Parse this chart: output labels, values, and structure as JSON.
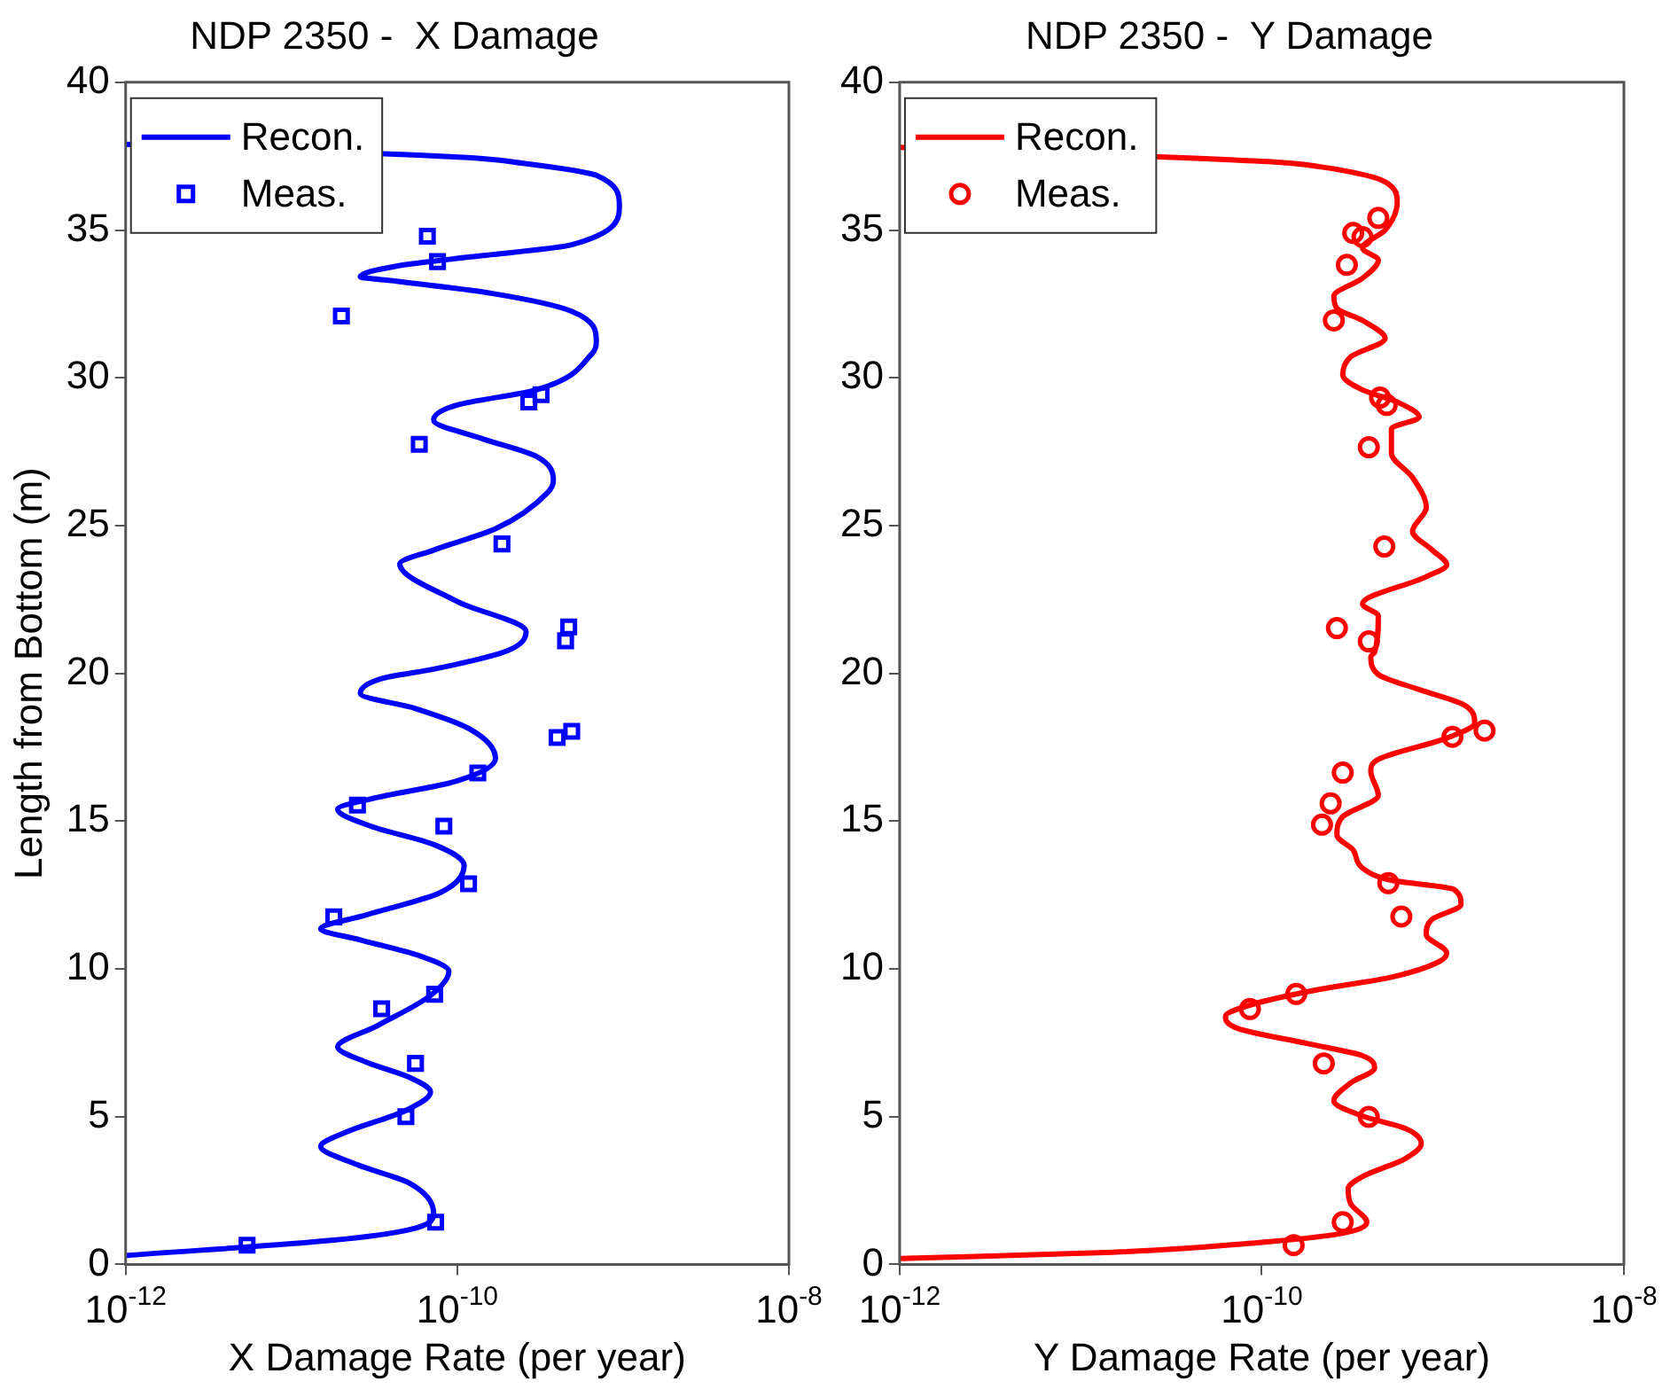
{
  "chart_data": [
    {
      "type": "line",
      "title": "NDP 2350 -  X Damage",
      "xlabel": "X Damage Rate (per year)",
      "ylabel": "Length from Bottom (m)",
      "log": "x",
      "grid": false,
      "legend": "top left",
      "xlim": [
        1e-12,
        1e-08
      ],
      "xticks": [
        {
          "value": 1e-12,
          "label": "10$^{-12}$"
        },
        {
          "value": 1e-10,
          "label": "10$^{-10}$"
        },
        {
          "value": 1e-08,
          "label": "10$^{-8}$"
        }
      ],
      "ylim": [
        0,
        40
      ],
      "yticks": [
        0,
        5,
        10,
        15,
        20,
        25,
        30,
        35,
        40
      ],
      "series": [
        {
          "name": "Recon.",
          "type": "line",
          "color": "#0000ff",
          "line_style": "solid",
          "marker": "none",
          "x": [
            1e-12,
            1.8e-11,
            5.1e-11,
            7.2e-11,
            5.1e-11,
            2.5e-11,
            1.5e-11,
            2.1e-11,
            4.9e-11,
            6.9e-11,
            5.1e-11,
            2.8e-11,
            1.9e-11,
            3.3e-11,
            6.9e-11,
            8.9e-11,
            6e-11,
            2.6e-11,
            1.5e-11,
            2.8e-11,
            7.9e-11,
            1.1e-10,
            7.2e-11,
            3e-11,
            1.9e-11,
            3e-11,
            1e-10,
            1.7e-10,
            1.2e-10,
            5.6e-11,
            2.6e-11,
            3.6e-11,
            7.2e-11,
            2e-10,
            2.6e-10,
            1e-10,
            4.5e-11,
            7.2e-11,
            1.7e-10,
            3.5e-10,
            3.8e-10,
            3e-10,
            1.4e-10,
            7.2e-11,
            1e-10,
            3e-10,
            6.5e-10,
            6.9e-10,
            4.9e-10,
            1.6e-10,
            4.3e-11,
            2.6e-11,
            4.3e-11,
            1.2e-10,
            4.9e-10,
            9.5e-10,
            6.9e-10,
            2.5e-10,
            1.1e-10,
            1e-12
          ],
          "values": [
            0.3,
            0.82,
            1.17,
            1.74,
            2.76,
            3.37,
            3.99,
            4.46,
            5.21,
            5.83,
            6.34,
            6.85,
            7.36,
            8.08,
            9.1,
            9.92,
            10.43,
            10.98,
            11.35,
            11.82,
            12.58,
            13.5,
            14.21,
            14.83,
            15.4,
            15.75,
            16.36,
            17.12,
            18.1,
            18.81,
            19.32,
            19.84,
            20.14,
            20.76,
            21.41,
            22.43,
            23.7,
            24.17,
            24.89,
            26.11,
            26.52,
            27.34,
            27.95,
            28.57,
            29.08,
            29.59,
            30.82,
            31.23,
            32.25,
            32.86,
            33.27,
            33.42,
            33.78,
            34.09,
            34.5,
            35.83,
            36.85,
            37.26,
            37.46,
            37.9
          ]
        },
        {
          "name": "Meas.",
          "type": "scatter",
          "color": "#0000ff",
          "marker": "square",
          "x": [
            5.4e-12,
            7.4e-11,
            4.9e-11,
            5.6e-11,
            3.5e-11,
            7.3e-11,
            1.8e-11,
            1.17e-10,
            8.3e-11,
            2.5e-11,
            1.33e-10,
            4e-10,
            4.9e-10,
            4.5e-10,
            4.7e-10,
            1.86e-10,
            5.9e-11,
            2.7e-10,
            3.2e-10,
            2e-11,
            7.6e-11,
            6.6e-11
          ],
          "values": [
            0.65,
            1.43,
            5.0,
            6.8,
            8.65,
            9.14,
            11.76,
            12.88,
            14.83,
            15.54,
            16.63,
            17.83,
            18.04,
            21.1,
            21.57,
            24.38,
            27.75,
            29.18,
            29.43,
            32.09,
            33.93,
            34.79
          ]
        }
      ]
    },
    {
      "type": "line",
      "title": "NDP 2350 -  Y Damage",
      "xlabel": "Y Damage Rate (per year)",
      "log": "x",
      "grid": false,
      "legend": "top left",
      "xlim": [
        1e-12,
        1e-08
      ],
      "xticks": [
        {
          "value": 1e-12,
          "label": "10$^{-12}$"
        },
        {
          "value": 1e-10,
          "label": "10$^{-10}$"
        },
        {
          "value": 1e-08,
          "label": "10$^{-8}$"
        }
      ],
      "ylim": [
        0,
        40
      ],
      "yticks": [
        0,
        5,
        10,
        15,
        20,
        25,
        30,
        35,
        40
      ],
      "series": [
        {
          "name": "Recon.",
          "type": "line",
          "color": "#ff0000",
          "line_style": "solid",
          "marker": "none",
          "x": [
            1e-12,
            1.5e-11,
            8.9e-11,
            2.6e-10,
            3.8e-10,
            3.1e-10,
            3e-10,
            3.6e-10,
            6.2e-10,
            7.6e-10,
            6.2e-10,
            3.6e-10,
            2.5e-10,
            3.1e-10,
            4.2e-10,
            3.6e-10,
            1.8e-10,
            7.4e-11,
            6.3e-11,
            8.9e-11,
            2.1e-10,
            5.2e-10,
            9.5e-10,
            1.05e-09,
            8.1e-10,
            8.7e-10,
            1.26e-09,
            1.15e-09,
            5.2e-10,
            3.6e-10,
            3.2e-10,
            2.6e-10,
            2.8e-10,
            4.4e-10,
            4e-10,
            4.4e-10,
            1.05e-09,
            1.5e-09,
            1.3e-09,
            7.4e-10,
            4.4e-10,
            4e-10,
            4.2e-10,
            4.4e-10,
            3.6e-10,
            8.1e-10,
            1.05e-09,
            8.7e-10,
            6.8e-10,
            8.1e-10,
            6.8e-10,
            5.2e-10,
            5.2e-10,
            7.4e-10,
            5.6e-10,
            3.6e-10,
            2.8e-10,
            3.1e-10,
            4.8e-10,
            3.6e-10,
            2.6e-10,
            2.5e-10,
            3.6e-10,
            4.4e-10,
            3.6e-10,
            4.8e-10,
            5.6e-10,
            4.8e-10,
            2.1e-10,
            1.26e-10,
            1e-12
          ],
          "values": [
            0.2,
            0.41,
            0.72,
            1.02,
            1.43,
            2.05,
            2.56,
            2.97,
            3.58,
            4.09,
            4.6,
            5.02,
            5.53,
            6.14,
            6.65,
            7.06,
            7.47,
            7.98,
            8.39,
            8.8,
            9.31,
            9.72,
            10.24,
            10.54,
            11.16,
            11.67,
            12.18,
            12.69,
            13.0,
            13.41,
            14.02,
            14.53,
            15.15,
            15.87,
            16.69,
            17.09,
            17.81,
            18.32,
            18.94,
            19.45,
            19.96,
            20.57,
            20.71,
            21.94,
            22.35,
            23.27,
            23.67,
            24.18,
            24.8,
            25.61,
            26.63,
            27.45,
            28.27,
            28.67,
            29.18,
            29.59,
            30.1,
            30.71,
            31.33,
            31.94,
            32.35,
            32.76,
            33.37,
            33.98,
            34.39,
            35.0,
            35.92,
            36.63,
            37.14,
            37.29,
            37.8
          ]
        },
        {
          "name": "Meas.",
          "type": "scatter",
          "color": "#ff0000",
          "marker": "circle",
          "x": [
            1.5e-10,
            2.8e-10,
            3.9e-10,
            2.2e-10,
            8.6e-11,
            1.55e-10,
            5.9e-10,
            5e-10,
            2.15e-10,
            2.4e-10,
            2.8e-10,
            1.13e-09,
            1.7e-09,
            3.9e-10,
            2.6e-10,
            4.75e-10,
            3.9e-10,
            4.9e-10,
            4.5e-10,
            2.5e-10,
            2.95e-10,
            3.6e-10,
            3.2e-10,
            4.4e-10
          ],
          "values": [
            0.65,
            1.43,
            4.99,
            6.8,
            8.64,
            9.15,
            11.77,
            12.9,
            14.88,
            15.6,
            16.64,
            17.85,
            18.06,
            21.08,
            21.53,
            24.29,
            27.65,
            29.08,
            29.33,
            31.94,
            33.82,
            34.76,
            34.9,
            35.41
          ]
        }
      ]
    }
  ]
}
